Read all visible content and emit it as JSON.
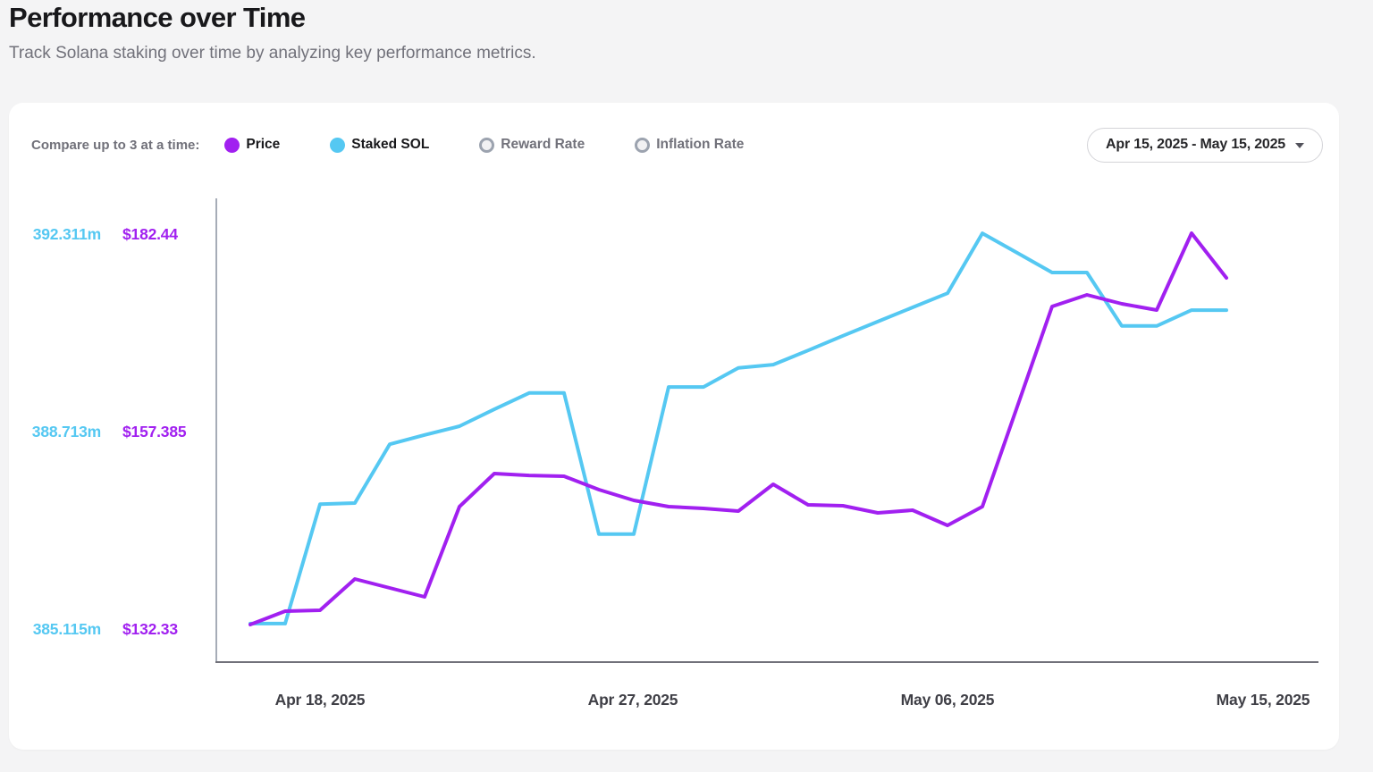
{
  "page": {
    "title": "Performance over Time",
    "subtitle": "Track Solana staking over time by analyzing key performance metrics."
  },
  "toolbar": {
    "compare_label": "Compare up to 3 at a time:",
    "metrics": [
      {
        "label": "Price",
        "active": true,
        "color": "#a120f0"
      },
      {
        "label": "Staked SOL",
        "active": true,
        "color": "#55c8f2"
      },
      {
        "label": "Reward Rate",
        "active": false,
        "color": "#9ca3af"
      },
      {
        "label": "Inflation Rate",
        "active": false,
        "color": "#9ca3af"
      }
    ],
    "date_range": "Apr 15, 2025 - May 15, 2025"
  },
  "chart_data": {
    "type": "line",
    "title": "Performance over Time",
    "grid": false,
    "legend_position": "top",
    "x_tick_labels": [
      "Apr 18, 2025",
      "Apr 27, 2025",
      "May 06, 2025",
      "May 15, 2025"
    ],
    "x": [
      "Apr 16, 2025",
      "Apr 17, 2025",
      "Apr 18, 2025",
      "Apr 19, 2025",
      "Apr 20, 2025",
      "Apr 21, 2025",
      "Apr 22, 2025",
      "Apr 23, 2025",
      "Apr 24, 2025",
      "Apr 25, 2025",
      "Apr 26, 2025",
      "Apr 27, 2025",
      "Apr 28, 2025",
      "Apr 29, 2025",
      "Apr 30, 2025",
      "May 01, 2025",
      "May 02, 2025",
      "May 03, 2025",
      "May 04, 2025",
      "May 05, 2025",
      "May 06, 2025",
      "May 07, 2025",
      "May 08, 2025",
      "May 09, 2025",
      "May 10, 2025",
      "May 11, 2025",
      "May 12, 2025",
      "May 13, 2025",
      "May 14, 2025"
    ],
    "series": [
      {
        "name": "Staked SOL",
        "unit": "m SOL",
        "color": "#55c8f2",
        "axis_labels": [
          "392.311m",
          "388.713m",
          "385.115m"
        ],
        "axis_min": 385.115,
        "axis_max": 392.311,
        "values": [
          385.15,
          385.15,
          387.34,
          387.36,
          388.44,
          388.61,
          388.77,
          389.08,
          389.38,
          389.38,
          386.79,
          386.79,
          389.49,
          389.49,
          389.84,
          389.9,
          390.16,
          390.43,
          390.69,
          390.95,
          391.21,
          392.31,
          391.95,
          391.59,
          391.59,
          390.61,
          390.61,
          390.9,
          390.9
        ]
      },
      {
        "name": "Price",
        "unit": "USD",
        "color": "#a120f0",
        "axis_labels": [
          "$182.44",
          "$157.385",
          "$132.33"
        ],
        "axis_min": 132.33,
        "axis_max": 182.44,
        "values": [
          132.44,
          134.16,
          134.27,
          138.27,
          137.12,
          135.98,
          147.51,
          151.73,
          151.5,
          151.39,
          149.68,
          148.31,
          147.51,
          147.28,
          146.94,
          150.36,
          147.74,
          147.63,
          146.71,
          147.06,
          145.11,
          147.51,
          160.29,
          173.08,
          174.56,
          173.42,
          172.62,
          182.44,
          176.73
        ]
      }
    ]
  }
}
